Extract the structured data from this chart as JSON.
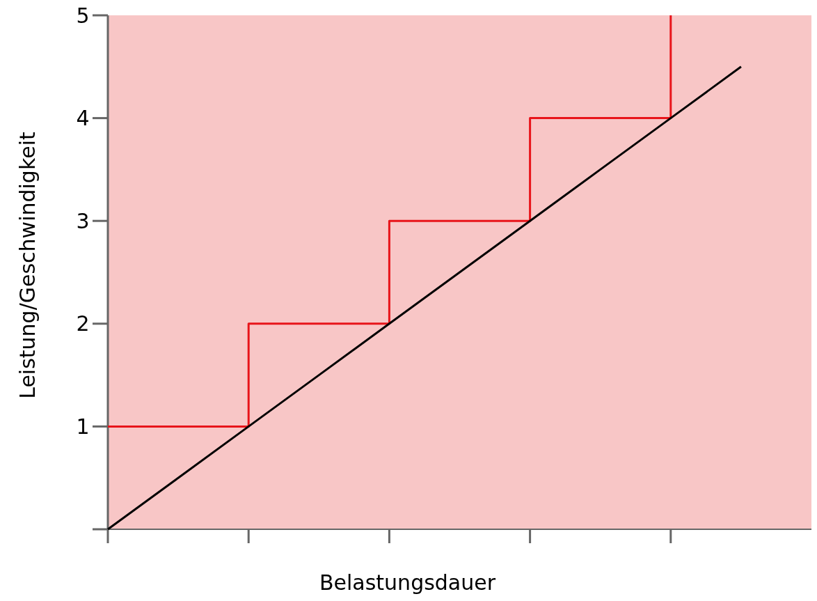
{
  "chart_data": {
    "type": "line",
    "xlabel": "Belastungsdauer",
    "ylabel": "Leistung/Geschwindigkeit",
    "categories": [
      null,
      null,
      null,
      null,
      null,
      null,
      null,
      null,
      null,
      null
    ],
    "ylim": [
      0,
      5
    ],
    "yticks": [
      {
        "value": 0,
        "label": null
      },
      1,
      2,
      3,
      4,
      5
    ],
    "grid": false,
    "series": [
      {
        "type": "step",
        "color": "#e8141a",
        "values": [
          1,
          1,
          2,
          2,
          3,
          3,
          4,
          4,
          5,
          null
        ]
      },
      {
        "color": "#000000",
        "values": [
          0,
          0.5,
          1,
          1.5,
          2,
          2.5,
          3,
          3.5,
          4,
          4.5
        ]
      }
    ]
  }
}
